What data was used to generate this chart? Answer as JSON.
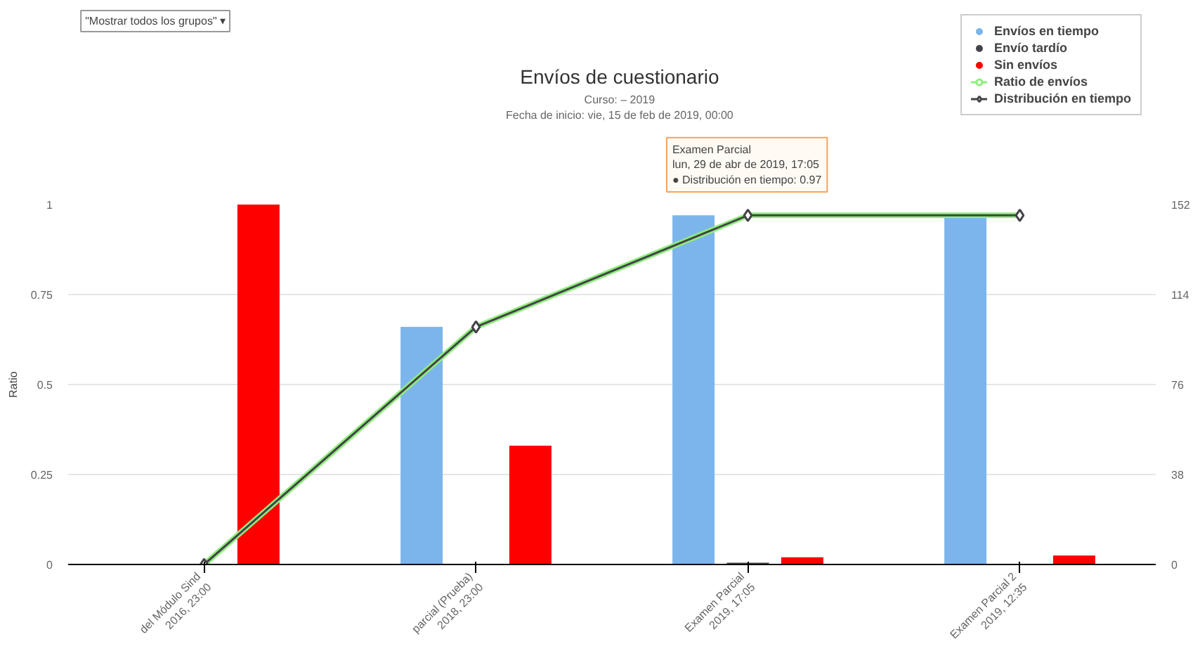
{
  "chart_data": {
    "type": "bar",
    "title": "Envíos de cuestionario",
    "subtitle": "Curso: – 2019\nFecha de inicio: vie, 15 de feb de 2019, 00:00",
    "ylabel": "Ratio",
    "categories": [
      "del Módulo Sind\n2016, 23:00",
      "parcial (Prueba)\n2018, 23:00",
      "Examen Parcial\n2019, 17:05",
      "Examen Parcial 2\n2019, 12:35"
    ],
    "series": [
      {
        "name": "Envíos en tiempo",
        "color": "#7cb5ec",
        "values": [
          0,
          0.66,
          0.97,
          0.97
        ]
      },
      {
        "name": "Envío tardío",
        "color": "#434348",
        "values": [
          0,
          0,
          0.005,
          0
        ]
      },
      {
        "name": "Sin envíos",
        "color": "#ff0000",
        "values": [
          1,
          0.33,
          0.02,
          0.025
        ]
      },
      {
        "name": "Ratio de envíos",
        "type": "line",
        "color": "#90ed7d",
        "values": [
          0,
          0.66,
          0.97,
          0.97
        ]
      },
      {
        "name": "Distribución en tiempo",
        "type": "line",
        "color": "#434348",
        "marker": "diamond",
        "values": [
          0,
          0.66,
          0.97,
          0.97
        ]
      }
    ],
    "ylim": [
      0,
      1
    ],
    "yticks": [
      0,
      0.25,
      0.5,
      0.75,
      1
    ],
    "y2lim": [
      0,
      152
    ],
    "y2ticks": [
      0,
      38,
      76,
      114,
      152
    ],
    "grid": "y",
    "legend": "top right",
    "annotations": [
      "\"Mostrar todos los grupos\" ▾",
      "Examen Parcial\nlun, 29 de abr de 2019, 17:05\n● Distribución en tiempo: 0.97"
    ]
  }
}
